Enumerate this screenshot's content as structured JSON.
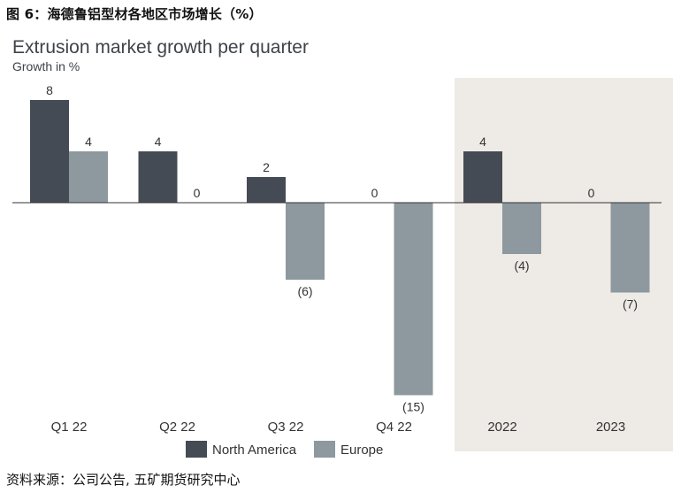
{
  "figure_caption": "图 6：海德鲁铝型材各地区市场增长（%）",
  "source": "资料来源：公司公告, 五矿期货研究中心",
  "colors": {
    "north_america": "#454b54",
    "europe": "#8d989f",
    "forecast_shade": "#eeeae6",
    "zero_line": "#333333"
  },
  "chart_data": {
    "type": "bar",
    "title": "Extrusion market growth per quarter",
    "subtitle": "Growth in %",
    "categories": [
      "Q1 22",
      "Q2 22",
      "Q3 22",
      "Q4 22",
      "2022",
      "2023"
    ],
    "shaded_categories": [
      "2022",
      "2023"
    ],
    "series": [
      {
        "name": "North America",
        "values": [
          8,
          4,
          2,
          0,
          4,
          0
        ],
        "labels": [
          "8",
          "4",
          "2",
          "0",
          "4",
          "0"
        ]
      },
      {
        "name": "Europe",
        "values": [
          4,
          0,
          -6,
          -15,
          -4,
          -7
        ],
        "labels": [
          "4",
          "0",
          "(6)",
          "(15)",
          "(4)",
          "(7)"
        ]
      }
    ],
    "ylim": [
      -15,
      8
    ],
    "grid": false,
    "legend_position": "bottom-center"
  }
}
